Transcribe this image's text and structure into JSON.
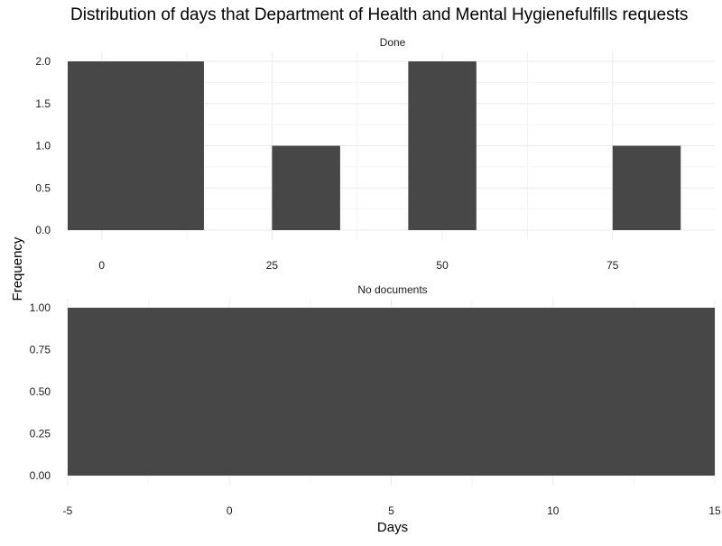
{
  "chart_data": {
    "type": "bar",
    "title": "Distribution of days that Department of Health and Mental Hygienefulfills requests",
    "xlabel": "Days",
    "ylabel": "Frequency",
    "bar_color": "#474747",
    "grid": true,
    "panels": [
      {
        "strip": "Done",
        "xlim": [
          -5,
          90
        ],
        "ylim": [
          0,
          2
        ],
        "x_ticks": [
          0,
          25,
          50,
          75
        ],
        "x_tick_labels": [
          "0",
          "25",
          "50",
          "75"
        ],
        "y_ticks": [
          0,
          0.5,
          1,
          1.5,
          2
        ],
        "y_tick_labels": [
          "0.0",
          "0.5",
          "1.0",
          "1.5",
          "2.0"
        ],
        "bars": [
          {
            "start": -5,
            "end": 15,
            "value": 2
          },
          {
            "start": 25,
            "end": 35,
            "value": 1
          },
          {
            "start": 45,
            "end": 55,
            "value": 2
          },
          {
            "start": 75,
            "end": 85,
            "value": 1
          }
        ]
      },
      {
        "strip": "No documents",
        "xlim": [
          -5,
          15
        ],
        "ylim": [
          0,
          1
        ],
        "x_ticks": [
          -5,
          0,
          5,
          10,
          15
        ],
        "x_tick_labels": [
          "-5",
          "0",
          "5",
          "10",
          "15"
        ],
        "y_ticks": [
          0,
          0.25,
          0.5,
          0.75,
          1
        ],
        "y_tick_labels": [
          "0.00",
          "0.25",
          "0.50",
          "0.75",
          "1.00"
        ],
        "bars": [
          {
            "start": -5,
            "end": 15,
            "value": 1
          }
        ]
      }
    ]
  }
}
